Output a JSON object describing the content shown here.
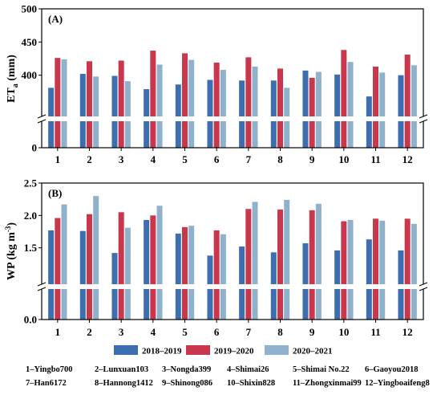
{
  "chart_data": [
    {
      "panel": "(A)",
      "type": "bar",
      "ylabel_main": "ET",
      "ylabel_sub": "a",
      "ylabel_unit": " (mm)",
      "categories": [
        "1",
        "2",
        "3",
        "4",
        "5",
        "6",
        "7",
        "8",
        "9",
        "10",
        "11",
        "12"
      ],
      "yticks": [
        "0",
        "400",
        "450",
        "500"
      ],
      "broken_axis": true,
      "upper_range": [
        350,
        500
      ],
      "series": [
        {
          "name": "2018–2019",
          "color": "#3d6fb0",
          "values": [
            381,
            402,
            399,
            379,
            386,
            393,
            392,
            392,
            407,
            401,
            368,
            400
          ]
        },
        {
          "name": "2019–2020",
          "color": "#c8374b",
          "values": [
            426,
            421,
            422,
            437,
            433,
            419,
            427,
            410,
            396,
            438,
            413,
            431
          ]
        },
        {
          "name": "2020–2021",
          "color": "#8fb1cb",
          "values": [
            424,
            398,
            391,
            416,
            423,
            408,
            413,
            381,
            405,
            420,
            404,
            415
          ]
        }
      ]
    },
    {
      "panel": "(B)",
      "type": "bar",
      "ylabel_main": "WP (kg m",
      "ylabel_sup": "-3",
      "ylabel_tail": ")",
      "categories": [
        "1",
        "2",
        "3",
        "4",
        "5",
        "6",
        "7",
        "8",
        "9",
        "10",
        "11",
        "12"
      ],
      "yticks": [
        "0.0",
        "1.5",
        "2.0",
        "2.5"
      ],
      "broken_axis": true,
      "upper_range": [
        1.0,
        2.5
      ],
      "series": [
        {
          "name": "2018–2019",
          "color": "#3d6fb0",
          "values": [
            1.77,
            1.76,
            1.42,
            1.93,
            1.72,
            1.38,
            1.52,
            1.43,
            1.57,
            1.46,
            1.63,
            1.46
          ]
        },
        {
          "name": "2019–2020",
          "color": "#c8374b",
          "values": [
            1.96,
            2.02,
            2.05,
            2.0,
            1.82,
            1.77,
            2.1,
            2.09,
            2.08,
            1.91,
            1.95,
            1.95
          ]
        },
        {
          "name": "2020–2021",
          "color": "#8fb1cb",
          "values": [
            2.17,
            2.3,
            1.81,
            2.15,
            1.84,
            1.71,
            2.21,
            2.24,
            2.18,
            1.93,
            1.92,
            1.87
          ]
        }
      ]
    }
  ],
  "legend": [
    "2018–2019",
    "2019–2020",
    "2020–2021"
  ],
  "cultivars": [
    "1–Yingbo700",
    "2–Lunxuan103",
    "3–Nongda399",
    "4–Shimai26",
    "5–Shimai No.22",
    "6–Gaoyou2018",
    "7–Han6172",
    "8–Hannong1412",
    "9–Shinong086",
    "10–Shixin828",
    "11–Zhongxinmai99",
    "12–Yingboaifeng8"
  ]
}
